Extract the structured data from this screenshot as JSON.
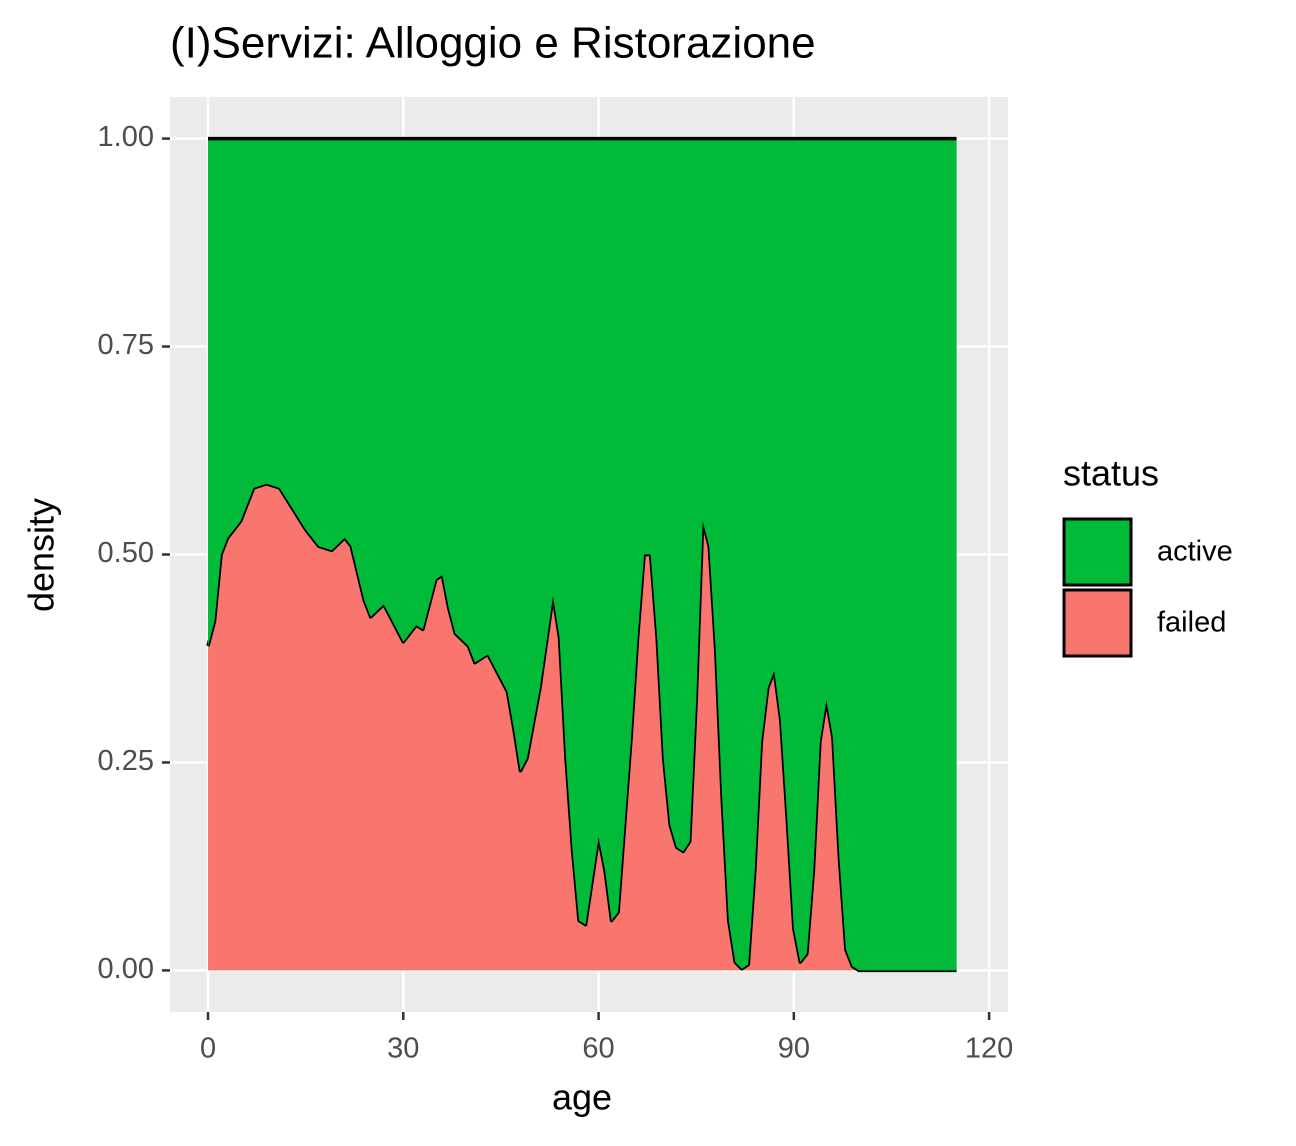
{
  "chart_data": {
    "type": "area",
    "stacked": true,
    "title": "(I)Servizi: Alloggio e Ristorazione",
    "x_label": "age",
    "y_label": "density",
    "legend_title": "status",
    "x": [
      0,
      1,
      2,
      3,
      5,
      7,
      9,
      11,
      13,
      15,
      17,
      19,
      21,
      22,
      24,
      25,
      27,
      29,
      30,
      32,
      33,
      35,
      36,
      37,
      38,
      40,
      41,
      43,
      45,
      46,
      47,
      48,
      49,
      51,
      53,
      54,
      55,
      56,
      57,
      58,
      60,
      61,
      62,
      63,
      65,
      66,
      67,
      68,
      69,
      70,
      71,
      72,
      73,
      74,
      75,
      76,
      77,
      78,
      79,
      80,
      81,
      82,
      83,
      84,
      85,
      86,
      87,
      88,
      89,
      90,
      91,
      92,
      93,
      94,
      95,
      96,
      97,
      98,
      99,
      100,
      115
    ],
    "series": [
      {
        "name": "active",
        "color": "#00ba38",
        "values": [
          0.61,
          0.58,
          0.5,
          0.48,
          0.46,
          0.42,
          0.415,
          0.42,
          0.445,
          0.47,
          0.49,
          0.495,
          0.48,
          0.49,
          0.555,
          0.575,
          0.56,
          0.59,
          0.605,
          0.585,
          0.59,
          0.53,
          0.525,
          0.565,
          0.595,
          0.61,
          0.63,
          0.62,
          0.65,
          0.665,
          0.71,
          0.76,
          0.745,
          0.66,
          0.55,
          0.6,
          0.745,
          0.855,
          0.94,
          0.945,
          0.84,
          0.88,
          0.94,
          0.93,
          0.72,
          0.6,
          0.5,
          0.5,
          0.6,
          0.745,
          0.825,
          0.852,
          0.857,
          0.845,
          0.675,
          0.46,
          0.49,
          0.615,
          0.795,
          0.94,
          0.99,
          0.998,
          0.993,
          0.88,
          0.725,
          0.66,
          0.64,
          0.7,
          0.82,
          0.95,
          0.99,
          0.98,
          0.88,
          0.725,
          0.675,
          0.72,
          0.865,
          0.975,
          0.995,
          1,
          1
        ]
      },
      {
        "name": "failed",
        "color": "#f8766d",
        "values": [
          0.39,
          0.42,
          0.5,
          0.52,
          0.54,
          0.58,
          0.585,
          0.58,
          0.555,
          0.53,
          0.51,
          0.505,
          0.52,
          0.51,
          0.445,
          0.425,
          0.44,
          0.41,
          0.395,
          0.415,
          0.41,
          0.47,
          0.475,
          0.435,
          0.405,
          0.39,
          0.37,
          0.38,
          0.35,
          0.335,
          0.29,
          0.24,
          0.255,
          0.34,
          0.45,
          0.4,
          0.255,
          0.145,
          0.06,
          0.055,
          0.16,
          0.12,
          0.06,
          0.07,
          0.28,
          0.4,
          0.5,
          0.5,
          0.4,
          0.255,
          0.175,
          0.148,
          0.143,
          0.155,
          0.325,
          0.54,
          0.51,
          0.385,
          0.205,
          0.06,
          0.01,
          0.002,
          0.007,
          0.12,
          0.275,
          0.34,
          0.36,
          0.3,
          0.18,
          0.05,
          0.01,
          0.02,
          0.12,
          0.275,
          0.325,
          0.28,
          0.135,
          0.025,
          0.005,
          0,
          0
        ]
      }
    ],
    "xlim": [
      -5.84,
      122.9
    ],
    "ylim": [
      -0.05,
      1.05
    ],
    "xticks": [
      0,
      30,
      60,
      90,
      120
    ],
    "yticks": [
      {
        "value": 0,
        "label": "0.00"
      },
      {
        "value": 0.25,
        "label": "0.25"
      },
      {
        "value": 0.5,
        "label": "0.50"
      },
      {
        "value": 0.75,
        "label": "0.75"
      },
      {
        "value": 1,
        "label": "1.00"
      }
    ],
    "grid": true
  }
}
